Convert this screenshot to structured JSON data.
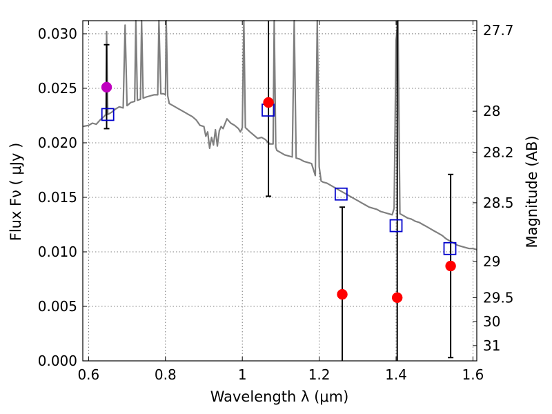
{
  "chart_data": {
    "type": "scatter",
    "xlabel": "Wavelength  λ (μm)",
    "ylabel": "Flux  Fν  ( μJy )",
    "y2label": "Magnitude (AB)",
    "xlim": [
      0.585,
      1.61
    ],
    "ylim": [
      0.0,
      0.0312
    ],
    "grid": true,
    "x_ticks": [
      0.6,
      0.8,
      1.0,
      1.2,
      1.4,
      1.6
    ],
    "x_tick_labels": [
      "0.6",
      "0.8",
      "1",
      "1.2",
      "1.4",
      "1.6"
    ],
    "y_ticks": [
      0.0,
      0.005,
      0.01,
      0.015,
      0.02,
      0.025,
      0.03
    ],
    "y_tick_labels": [
      "0.000",
      "0.005",
      "0.010",
      "0.015",
      "0.020",
      "0.025",
      "0.030"
    ],
    "mag_ticks": [
      {
        "label": "27.7",
        "flux": 0.0303
      },
      {
        "label": "28",
        "flux": 0.0229
      },
      {
        "label": "28.2",
        "flux": 0.0191
      },
      {
        "label": "28.5",
        "flux": 0.0145
      },
      {
        "label": "29",
        "flux": 0.0091
      },
      {
        "label": "29.5",
        "flux": 0.0058
      },
      {
        "label": "30",
        "flux": 0.0036
      },
      {
        "label": "31",
        "flux": 0.0014
      }
    ],
    "colors": {
      "spectrum": "#7f7f7f",
      "observed": "#ff0000",
      "highlight": "#bf00bf",
      "model": "#0000cc",
      "errorbar": "#000000"
    },
    "series": [
      {
        "kind": "spectrum",
        "points": [
          [
            0.585,
            0.0215
          ],
          [
            0.6,
            0.0216
          ],
          [
            0.61,
            0.0218
          ],
          [
            0.62,
            0.0217
          ],
          [
            0.63,
            0.0221
          ],
          [
            0.64,
            0.0224
          ],
          [
            0.645,
            0.0226
          ],
          [
            0.647,
            0.0302
          ],
          [
            0.65,
            0.0226
          ],
          [
            0.66,
            0.0228
          ],
          [
            0.67,
            0.0231
          ],
          [
            0.68,
            0.0233
          ],
          [
            0.69,
            0.0232
          ],
          [
            0.695,
            0.0308
          ],
          [
            0.7,
            0.0234
          ],
          [
            0.71,
            0.0237
          ],
          [
            0.72,
            0.0238
          ],
          [
            0.723,
            0.0312
          ],
          [
            0.727,
            0.0239
          ],
          [
            0.735,
            0.024
          ],
          [
            0.738,
            0.0312
          ],
          [
            0.742,
            0.0241
          ],
          [
            0.75,
            0.0242
          ],
          [
            0.76,
            0.0243
          ],
          [
            0.77,
            0.0244
          ],
          [
            0.78,
            0.0244
          ],
          [
            0.783,
            0.0312
          ],
          [
            0.788,
            0.0245
          ],
          [
            0.795,
            0.0245
          ],
          [
            0.8,
            0.0244
          ],
          [
            0.802,
            0.0312
          ],
          [
            0.806,
            0.0243
          ],
          [
            0.81,
            0.0236
          ],
          [
            0.82,
            0.0234
          ],
          [
            0.83,
            0.0232
          ],
          [
            0.84,
            0.023
          ],
          [
            0.85,
            0.0228
          ],
          [
            0.86,
            0.0226
          ],
          [
            0.87,
            0.0224
          ],
          [
            0.88,
            0.0221
          ],
          [
            0.89,
            0.0216
          ],
          [
            0.9,
            0.0215
          ],
          [
            0.905,
            0.0206
          ],
          [
            0.91,
            0.021
          ],
          [
            0.915,
            0.0195
          ],
          [
            0.92,
            0.0205
          ],
          [
            0.925,
            0.0198
          ],
          [
            0.93,
            0.0212
          ],
          [
            0.935,
            0.0197
          ],
          [
            0.94,
            0.0211
          ],
          [
            0.945,
            0.0215
          ],
          [
            0.95,
            0.0213
          ],
          [
            0.96,
            0.0222
          ],
          [
            0.97,
            0.0218
          ],
          [
            0.98,
            0.0216
          ],
          [
            0.99,
            0.0213
          ],
          [
            0.995,
            0.021
          ],
          [
            1.0,
            0.0214
          ],
          [
            1.004,
            0.0312
          ],
          [
            1.008,
            0.0214
          ],
          [
            1.02,
            0.021
          ],
          [
            1.03,
            0.0207
          ],
          [
            1.04,
            0.0204
          ],
          [
            1.05,
            0.0205
          ],
          [
            1.06,
            0.0203
          ],
          [
            1.07,
            0.0199
          ],
          [
            1.08,
            0.0199
          ],
          [
            1.083,
            0.0312
          ],
          [
            1.087,
            0.0196
          ],
          [
            1.09,
            0.0193
          ],
          [
            1.1,
            0.0191
          ],
          [
            1.11,
            0.0189
          ],
          [
            1.12,
            0.0188
          ],
          [
            1.13,
            0.0187
          ],
          [
            1.135,
            0.0312
          ],
          [
            1.14,
            0.0186
          ],
          [
            1.15,
            0.0185
          ],
          [
            1.16,
            0.0183
          ],
          [
            1.17,
            0.0182
          ],
          [
            1.18,
            0.0181
          ],
          [
            1.19,
            0.017
          ],
          [
            1.195,
            0.0312
          ],
          [
            1.2,
            0.0178
          ],
          [
            1.205,
            0.0165
          ],
          [
            1.21,
            0.0164
          ],
          [
            1.22,
            0.0163
          ],
          [
            1.23,
            0.0161
          ],
          [
            1.24,
            0.0159
          ],
          [
            1.25,
            0.0157
          ],
          [
            1.26,
            0.0155
          ],
          [
            1.27,
            0.0153
          ],
          [
            1.28,
            0.0151
          ],
          [
            1.29,
            0.0149
          ],
          [
            1.3,
            0.0147
          ],
          [
            1.31,
            0.0145
          ],
          [
            1.32,
            0.0143
          ],
          [
            1.33,
            0.0141
          ],
          [
            1.34,
            0.014
          ],
          [
            1.35,
            0.0139
          ],
          [
            1.36,
            0.0137
          ],
          [
            1.37,
            0.0136
          ],
          [
            1.38,
            0.0135
          ],
          [
            1.39,
            0.0134
          ],
          [
            1.395,
            0.014
          ],
          [
            1.4,
            0.0294
          ],
          [
            1.405,
            0.0312
          ],
          [
            1.41,
            0.0135
          ],
          [
            1.42,
            0.0133
          ],
          [
            1.43,
            0.0131
          ],
          [
            1.44,
            0.013
          ],
          [
            1.45,
            0.0128
          ],
          [
            1.46,
            0.0127
          ],
          [
            1.47,
            0.0125
          ],
          [
            1.48,
            0.0123
          ],
          [
            1.49,
            0.0121
          ],
          [
            1.5,
            0.0119
          ],
          [
            1.51,
            0.0117
          ],
          [
            1.52,
            0.0115
          ],
          [
            1.53,
            0.0112
          ],
          [
            1.54,
            0.011
          ],
          [
            1.55,
            0.0108
          ],
          [
            1.56,
            0.0106
          ],
          [
            1.57,
            0.0105
          ],
          [
            1.58,
            0.0104
          ],
          [
            1.59,
            0.0103
          ],
          [
            1.6,
            0.0103
          ],
          [
            1.61,
            0.0102
          ]
        ]
      },
      {
        "kind": "observed",
        "points": [
          {
            "x": 0.647,
            "y": 0.0251,
            "err_low": 0.0213,
            "err_high": 0.029,
            "style": "highlight"
          },
          {
            "x": 1.068,
            "y": 0.0237,
            "err_low": 0.0151,
            "err_high": 0.0312,
            "style": "observed"
          },
          {
            "x": 1.26,
            "y": 0.0061,
            "err_low": 0.0,
            "err_high": 0.0141,
            "style": "observed"
          },
          {
            "x": 1.403,
            "y": 0.0058,
            "err_low": 0.0,
            "err_high": 0.0312,
            "style": "observed"
          },
          {
            "x": 1.542,
            "y": 0.0087,
            "err_low": 0.0003,
            "err_high": 0.0171,
            "style": "observed"
          }
        ]
      },
      {
        "kind": "model",
        "points": [
          {
            "x": 0.65,
            "y": 0.0226
          },
          {
            "x": 1.067,
            "y": 0.023
          },
          {
            "x": 1.257,
            "y": 0.0153
          },
          {
            "x": 1.4,
            "y": 0.0124
          },
          {
            "x": 1.54,
            "y": 0.0103
          }
        ]
      }
    ]
  }
}
